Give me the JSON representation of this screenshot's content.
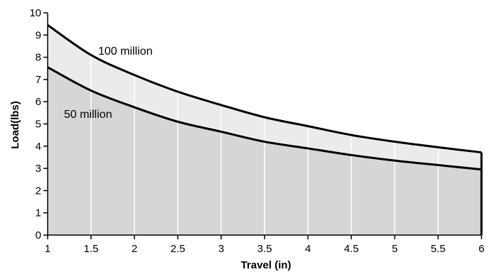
{
  "chart_data": {
    "type": "area",
    "title": "",
    "xlabel": "Travel (in)",
    "ylabel": "Load(lbs)",
    "xlim": [
      1,
      6
    ],
    "ylim": [
      0,
      10
    ],
    "x_ticks": [
      "1",
      "1.5",
      "2",
      "2.5",
      "3",
      "3.5",
      "4",
      "4.5",
      "5",
      "5.5",
      "6"
    ],
    "y_ticks": [
      "0",
      "1",
      "2",
      "3",
      "4",
      "5",
      "6",
      "7",
      "8",
      "9",
      "10"
    ],
    "grid": "vertical",
    "x": [
      1,
      1.5,
      2,
      2.5,
      3,
      3.5,
      4,
      4.5,
      5,
      5.5,
      6
    ],
    "series": [
      {
        "name": "100 million",
        "values": [
          9.45,
          8.1,
          7.2,
          6.45,
          5.85,
          5.3,
          4.9,
          4.5,
          4.2,
          3.95,
          3.72
        ],
        "fill": "#ebebeb"
      },
      {
        "name": "50 million",
        "values": [
          7.55,
          6.5,
          5.75,
          5.1,
          4.65,
          4.2,
          3.9,
          3.6,
          3.35,
          3.15,
          2.95
        ],
        "fill": "#d6d6d6"
      }
    ],
    "line_color": "#000000"
  }
}
